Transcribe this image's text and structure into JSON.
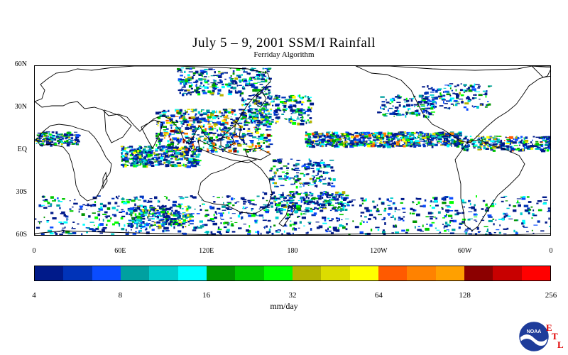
{
  "header": {
    "title": "July 5 – 9, 2001 SSM/I Rainfall",
    "subtitle": "Ferriday Algorithm"
  },
  "map": {
    "lat_labels": [
      {
        "text": "60N",
        "lat": 60
      },
      {
        "text": "30N",
        "lat": 30
      },
      {
        "text": "EQ",
        "lat": 0
      },
      {
        "text": "30S",
        "lat": -30
      },
      {
        "text": "60S",
        "lat": -60
      }
    ],
    "lon_labels": [
      {
        "text": "0",
        "lon": 0
      },
      {
        "text": "60E",
        "lon": 60
      },
      {
        "text": "120E",
        "lon": 120
      },
      {
        "text": "180",
        "lon": 180
      },
      {
        "text": "120W",
        "lon": 240
      },
      {
        "text": "60W",
        "lon": 300
      },
      {
        "text": "0",
        "lon": 360
      }
    ],
    "extent": {
      "lon": [
        0,
        360
      ],
      "lat": [
        -60,
        60
      ]
    }
  },
  "colorbar": {
    "colors": [
      "#001a8a",
      "#0033b8",
      "#0a4cff",
      "#00a0a0",
      "#00cccc",
      "#00ffff",
      "#009600",
      "#00c800",
      "#00ff00",
      "#b4b400",
      "#dcdc00",
      "#ffff00",
      "#ff5a00",
      "#ff8200",
      "#ffa000",
      "#8c0000",
      "#c80000",
      "#ff0000"
    ],
    "tick_labels": [
      "4",
      "8",
      "16",
      "32",
      "64",
      "128",
      "256"
    ],
    "units": "mm/day"
  },
  "logo": {
    "letters": [
      "E",
      "T",
      "L"
    ],
    "badge_text": "NOAA"
  }
}
